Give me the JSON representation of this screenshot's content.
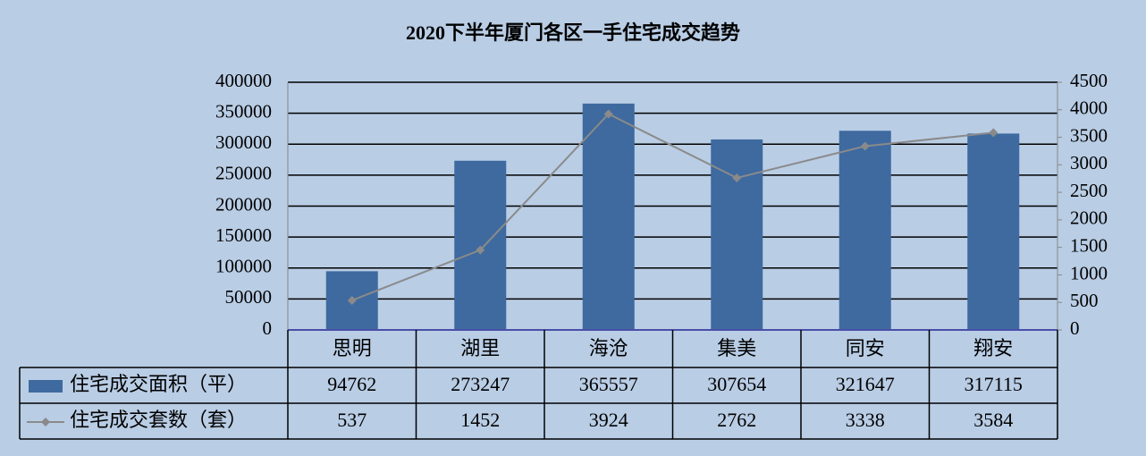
{
  "chart_data": {
    "type": "bar-line",
    "title": "2020下半年厦门各区一手住宅成交趋势",
    "categories": [
      "思明",
      "湖里",
      "海沧",
      "集美",
      "同安",
      "翔安"
    ],
    "series": [
      {
        "name": "住宅成交面积（平）",
        "type": "bar",
        "color": "#3e6a9f",
        "values": [
          94762,
          273247,
          365557,
          307654,
          321647,
          317115
        ]
      },
      {
        "name": "住宅成交套数（套）",
        "type": "line",
        "axis": "y2",
        "color": "#8a8a8a",
        "values": [
          537,
          1452,
          3924,
          2762,
          3338,
          3584
        ]
      }
    ],
    "ylim": [
      0,
      400000
    ],
    "yticks": [
      0,
      50000,
      100000,
      150000,
      200000,
      250000,
      300000,
      350000,
      400000
    ],
    "y2lim": [
      0,
      4500
    ],
    "y2ticks": [
      0,
      500,
      1000,
      1500,
      2000,
      2500,
      3000,
      3500,
      4000,
      4500
    ],
    "grid": true
  }
}
